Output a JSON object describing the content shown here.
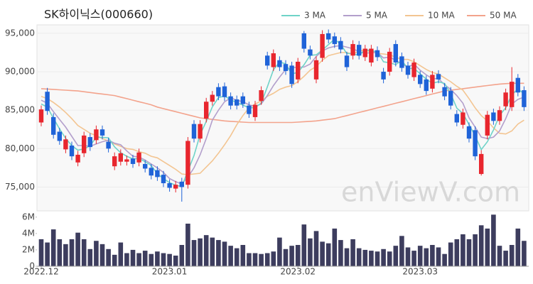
{
  "chart_data": [
    {
      "type": "candlestick",
      "title": "SK하이닉스(000660)",
      "watermark": "enViewV.com",
      "legend": "top-right",
      "grid": true,
      "up_color": "#e8262e",
      "down_color": "#1f63d8",
      "ylim": [
        71900,
        96100
      ],
      "yticks": [
        {
          "value": 75000,
          "label": "75,000"
        },
        {
          "value": 80000,
          "label": "80,000"
        },
        {
          "value": 85000,
          "label": "85,000"
        },
        {
          "value": 90000,
          "label": "90,000"
        },
        {
          "value": 95000,
          "label": "95,000"
        }
      ],
      "open": [
        83400,
        87400,
        84100,
        82200,
        79900,
        80400,
        78200,
        79400,
        81500,
        81100,
        82500,
        80900,
        77700,
        78300,
        78300,
        78700,
        78200,
        78000,
        77500,
        77200,
        76600,
        75500,
        74800,
        75700,
        75300,
        83200,
        81300,
        83900,
        86100,
        88000,
        88100,
        86800,
        86400,
        86800,
        85600,
        84100,
        86200,
        92100,
        90600,
        91500,
        91000,
        90800,
        89000,
        95000,
        92900,
        89000,
        91800,
        95000,
        94600,
        94000,
        92100,
        92100,
        93500,
        91900,
        91200,
        92800,
        90000,
        90000,
        93600,
        92000,
        90800,
        89300,
        89600,
        89000,
        87800,
        89700,
        88000,
        87500,
        84500,
        83100,
        82900,
        82400,
        76700,
        81700,
        84700,
        83600,
        85500,
        85400,
        89200,
        87600
      ],
      "high": [
        85600,
        87900,
        84600,
        82700,
        81700,
        80900,
        79700,
        82200,
        82000,
        83000,
        83000,
        81400,
        79500,
        79900,
        79100,
        79200,
        80000,
        78500,
        78000,
        77700,
        77100,
        76000,
        75800,
        76200,
        81500,
        83700,
        83700,
        86600,
        87500,
        88500,
        88600,
        87300,
        86900,
        87300,
        86100,
        86200,
        88100,
        92600,
        92900,
        92000,
        91500,
        91300,
        91800,
        95300,
        93400,
        92000,
        95400,
        95500,
        95100,
        94500,
        92600,
        94100,
        94000,
        93500,
        93500,
        93300,
        90500,
        93100,
        94100,
        92500,
        91300,
        91700,
        90100,
        89500,
        90100,
        90200,
        88500,
        88000,
        85000,
        85200,
        83400,
        82900,
        79800,
        84900,
        85200,
        85500,
        87800,
        90600,
        89700,
        88100
      ],
      "low": [
        82900,
        84400,
        81300,
        80500,
        79400,
        78500,
        77700,
        78900,
        79700,
        80600,
        81200,
        79500,
        77200,
        77800,
        77800,
        77500,
        77700,
        76900,
        76000,
        75800,
        75000,
        74400,
        74300,
        73100,
        74800,
        80800,
        80800,
        83400,
        85600,
        86300,
        86200,
        85100,
        85100,
        85300,
        84000,
        83600,
        85700,
        90300,
        90100,
        90100,
        89600,
        87900,
        88500,
        92500,
        91600,
        88500,
        91300,
        93700,
        93100,
        92400,
        90100,
        91600,
        91600,
        91400,
        90700,
        91400,
        88500,
        89500,
        90700,
        90000,
        89100,
        88800,
        87900,
        87000,
        87300,
        88500,
        86300,
        85100,
        82900,
        82600,
        80800,
        78500,
        76500,
        81200,
        83100,
        83100,
        85000,
        84900,
        86800,
        84900
      ],
      "close": [
        85100,
        84900,
        81800,
        81000,
        81200,
        79000,
        79200,
        81700,
        80200,
        82500,
        81700,
        80000,
        79000,
        79400,
        78600,
        78000,
        79500,
        77400,
        76500,
        76300,
        75500,
        74900,
        75300,
        75000,
        81000,
        81300,
        83200,
        86100,
        87000,
        86800,
        86700,
        85600,
        85600,
        85800,
        84500,
        85700,
        87600,
        90800,
        92400,
        90600,
        90100,
        88400,
        91300,
        93000,
        92100,
        91500,
        94900,
        94200,
        93600,
        92900,
        90600,
        93600,
        92100,
        93000,
        93000,
        91900,
        89000,
        92600,
        91200,
        90500,
        89600,
        91200,
        88400,
        87500,
        89600,
        89000,
        86800,
        85600,
        83400,
        84700,
        81300,
        79000,
        79300,
        84400,
        83600,
        85000,
        87300,
        88700,
        87300,
        85400
      ],
      "series": [
        {
          "name": "3 MA",
          "color": "#6fd3c8",
          "values": [
            85800,
            85400,
            83933,
            82567,
            81333,
            80400,
            79800,
            79967,
            80367,
            81467,
            81467,
            81400,
            80233,
            79467,
            79000,
            78667,
            78700,
            78300,
            77800,
            76733,
            76100,
            75567,
            75233,
            75067,
            77100,
            79100,
            81833,
            83533,
            85433,
            86633,
            86833,
            86367,
            85967,
            85667,
            85300,
            85333,
            85933,
            88033,
            90267,
            91267,
            91033,
            89700,
            89933,
            90900,
            92133,
            92200,
            92833,
            93533,
            94233,
            93567,
            92367,
            92367,
            92100,
            92900,
            92700,
            92633,
            91300,
            91167,
            90933,
            91433,
            90433,
            90433,
            89733,
            89033,
            88500,
            88700,
            88467,
            87133,
            85267,
            84567,
            83133,
            81667,
            79867,
            80900,
            82433,
            84333,
            85300,
            87000,
            87767,
            87133
          ]
        },
        {
          "name": "5 MA",
          "color": "#b39fcc",
          "values": [
            86300,
            85900,
            84800,
            83800,
            82800,
            81600,
            80400,
            80400,
            80300,
            80600,
            80900,
            81100,
            80700,
            80500,
            79700,
            79000,
            78900,
            78500,
            78000,
            77500,
            76900,
            76100,
            75700,
            75400,
            76300,
            77500,
            79200,
            81300,
            83700,
            85000,
            86100,
            86600,
            86300,
            86100,
            85700,
            85500,
            85800,
            86900,
            88200,
            89300,
            90300,
            90500,
            90600,
            90600,
            91000,
            92000,
            92700,
            93100,
            93300,
            93400,
            93200,
            93000,
            92600,
            92400,
            92500,
            92500,
            91800,
            91900,
            91500,
            91000,
            90600,
            91000,
            90200,
            89600,
            89100,
            89100,
            88300,
            87700,
            86900,
            85900,
            84000,
            82800,
            81500,
            81300,
            81500,
            82300,
            83900,
            85800,
            86400,
            86700
          ]
        },
        {
          "name": "10 MA",
          "color": "#f3c592",
          "values": [
            86800,
            86500,
            86000,
            85400,
            84700,
            83900,
            83000,
            82500,
            82000,
            81700,
            81300,
            81000,
            80600,
            80300,
            80000,
            79900,
            79600,
            79400,
            79000,
            78800,
            78300,
            77800,
            77300,
            76700,
            76600,
            76700,
            76800,
            77600,
            78400,
            79400,
            80500,
            81700,
            83100,
            84300,
            85300,
            85800,
            86200,
            86800,
            87200,
            87700,
            88000,
            88200,
            88700,
            89400,
            90200,
            90700,
            91500,
            92100,
            92300,
            92500,
            92500,
            92300,
            92700,
            92800,
            92600,
            92400,
            92300,
            92200,
            91900,
            91600,
            91600,
            91300,
            90800,
            90300,
            89900,
            89700,
            89200,
            88700,
            88100,
            87600,
            86500,
            85300,
            84300,
            83600,
            82700,
            82000,
            81900,
            82300,
            83200,
            83700
          ]
        },
        {
          "name": "50 MA",
          "color": "#f3a38c",
          "values": [
            87800,
            87750,
            87700,
            87650,
            87600,
            87550,
            87500,
            87400,
            87300,
            87200,
            87100,
            87000,
            86900,
            86700,
            86500,
            86300,
            86100,
            85900,
            85700,
            85400,
            85200,
            85000,
            84800,
            84600,
            84400,
            84200,
            84000,
            83900,
            83800,
            83700,
            83600,
            83550,
            83500,
            83450,
            83400,
            83400,
            83400,
            83400,
            83400,
            83400,
            83400,
            83400,
            83450,
            83500,
            83550,
            83600,
            83700,
            83800,
            83900,
            84100,
            84300,
            84500,
            84700,
            84900,
            85100,
            85300,
            85500,
            85700,
            85900,
            86100,
            86300,
            86500,
            86700,
            86900,
            87100,
            87300,
            87500,
            87600,
            87700,
            87800,
            87900,
            88000,
            88100,
            88200,
            88300,
            88400,
            88450,
            88500,
            88500,
            88500
          ]
        }
      ]
    },
    {
      "type": "bar",
      "color": "#3d3d5e",
      "categories": [
        "2022.12",
        null,
        null,
        null,
        null,
        null,
        null,
        null,
        null,
        null,
        null,
        null,
        null,
        null,
        null,
        null,
        null,
        null,
        null,
        null,
        null,
        "2023.01",
        null,
        null,
        null,
        null,
        null,
        null,
        null,
        null,
        null,
        null,
        null,
        null,
        null,
        null,
        null,
        null,
        null,
        null,
        null,
        null,
        "2023.02",
        null,
        null,
        null,
        null,
        null,
        null,
        null,
        null,
        null,
        null,
        null,
        null,
        null,
        null,
        null,
        null,
        null,
        null,
        null,
        "2023.03",
        null,
        null,
        null,
        null,
        null,
        null,
        null,
        null,
        null,
        null,
        null,
        null,
        null,
        null,
        null,
        null,
        null
      ],
      "values": [
        3300000,
        2900000,
        4500000,
        3300000,
        2700000,
        3300000,
        4100000,
        3300000,
        2100000,
        3100000,
        2700000,
        2100000,
        1400000,
        2900000,
        1600000,
        2000000,
        1600000,
        1900000,
        1500000,
        1800000,
        1600000,
        1500000,
        1300000,
        2600000,
        5200000,
        3200000,
        3400000,
        3800000,
        3500000,
        3200000,
        3000000,
        2500000,
        2200000,
        2600000,
        1600000,
        1600000,
        1500000,
        1600000,
        1800000,
        3500000,
        2100000,
        2500000,
        2600000,
        5100000,
        3400000,
        4300000,
        3000000,
        2800000,
        4600000,
        3200000,
        2200000,
        3300000,
        2200000,
        2000000,
        1900000,
        1800000,
        2100000,
        1800000,
        2500000,
        3700000,
        2300000,
        1900000,
        2500000,
        2200000,
        2600000,
        2300000,
        1500000,
        2900000,
        3300000,
        3900000,
        3300000,
        3900000,
        5000000,
        4600000,
        6300000,
        2500000,
        1900000,
        2600000,
        4600000,
        3100000
      ],
      "ylim": [
        0,
        6500000
      ],
      "yticks": [
        0,
        {
          "value": 2000000,
          "label": "2M"
        },
        {
          "value": 4000000,
          "label": "4M"
        },
        {
          "value": 6000000,
          "label": "6M"
        }
      ]
    }
  ]
}
